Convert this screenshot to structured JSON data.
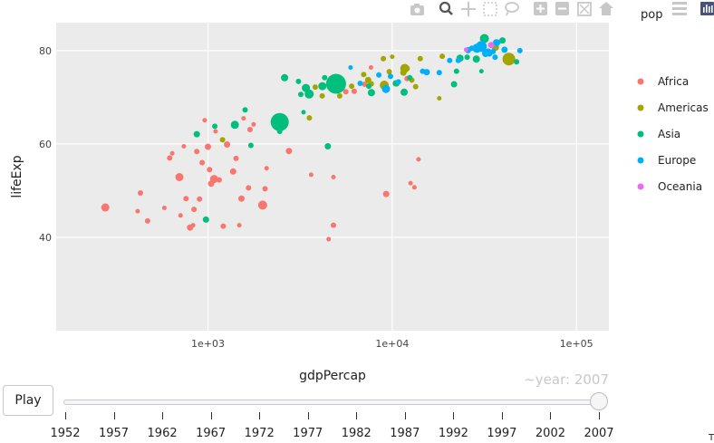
{
  "modebar": {
    "icons": [
      "camera-icon",
      "zoom-icon",
      "pan-icon",
      "box-select-icon",
      "lasso-icon",
      "zoom-in-icon",
      "zoom-out-icon",
      "autoscale-icon",
      "home-icon",
      "plotly-logo-icon"
    ]
  },
  "legend": {
    "title": "pop",
    "position": "right",
    "items": [
      {
        "label": "Africa",
        "color": "#f8766d"
      },
      {
        "label": "Americas",
        "color": "#a3a500"
      },
      {
        "label": "Asia",
        "color": "#00bf7d"
      },
      {
        "label": "Europe",
        "color": "#00b0f6"
      },
      {
        "label": "Oceania",
        "color": "#e76bf3"
      }
    ]
  },
  "slider": {
    "play_label": "Play",
    "current_label": "~year: 2007",
    "steps": [
      "1952",
      "1957",
      "1962",
      "1967",
      "1972",
      "1977",
      "1982",
      "1987",
      "1992",
      "1997",
      "2002",
      "2007"
    ],
    "active_index": 11
  },
  "corner_text": "T",
  "chart_data": {
    "type": "scatter",
    "title": "",
    "xlabel": "gdpPercap",
    "ylabel": "lifeExp",
    "x_scale": "log",
    "xlim": [
      150,
      150000
    ],
    "ylim": [
      20,
      86
    ],
    "x_ticks": [
      1000,
      10000,
      100000
    ],
    "x_tick_labels": [
      "1e+03",
      "1e+04",
      "1e+05"
    ],
    "y_ticks": [
      40,
      60,
      80
    ],
    "y_tick_labels": [
      "40",
      "60",
      "80"
    ],
    "grid": true,
    "background": "#ebebeb",
    "series": [
      {
        "name": "Africa",
        "color": "#f8766d",
        "points": [
          {
            "x": 277,
            "y": 46.4,
            "pop": 9
          },
          {
            "x": 415,
            "y": 45.6,
            "pop": 5
          },
          {
            "x": 430,
            "y": 49.5,
            "pop": 6
          },
          {
            "x": 470,
            "y": 43.5,
            "pop": 6
          },
          {
            "x": 580,
            "y": 46.3,
            "pop": 5
          },
          {
            "x": 620,
            "y": 57.0,
            "pop": 6
          },
          {
            "x": 640,
            "y": 58.0,
            "pop": 5
          },
          {
            "x": 700,
            "y": 52.9,
            "pop": 9
          },
          {
            "x": 710,
            "y": 44.7,
            "pop": 5
          },
          {
            "x": 740,
            "y": 59.5,
            "pop": 5
          },
          {
            "x": 760,
            "y": 48.3,
            "pop": 6
          },
          {
            "x": 800,
            "y": 42.1,
            "pop": 7
          },
          {
            "x": 830,
            "y": 42.6,
            "pop": 5
          },
          {
            "x": 840,
            "y": 46.0,
            "pop": 6
          },
          {
            "x": 870,
            "y": 58.4,
            "pop": 6
          },
          {
            "x": 900,
            "y": 48.2,
            "pop": 6
          },
          {
            "x": 930,
            "y": 56.0,
            "pop": 6
          },
          {
            "x": 960,
            "y": 65.1,
            "pop": 5
          },
          {
            "x": 1000,
            "y": 59.4,
            "pop": 7
          },
          {
            "x": 1020,
            "y": 54.5,
            "pop": 6
          },
          {
            "x": 1040,
            "y": 51.5,
            "pop": 7
          },
          {
            "x": 1080,
            "y": 52.5,
            "pop": 9
          },
          {
            "x": 1100,
            "y": 62.7,
            "pop": 5
          },
          {
            "x": 1150,
            "y": 52.3,
            "pop": 6
          },
          {
            "x": 1210,
            "y": 42.4,
            "pop": 6
          },
          {
            "x": 1270,
            "y": 59.9,
            "pop": 7
          },
          {
            "x": 1370,
            "y": 54.1,
            "pop": 7
          },
          {
            "x": 1420,
            "y": 56.9,
            "pop": 6
          },
          {
            "x": 1480,
            "y": 42.6,
            "pop": 5
          },
          {
            "x": 1520,
            "y": 48.3,
            "pop": 7
          },
          {
            "x": 1560,
            "y": 65.5,
            "pop": 5
          },
          {
            "x": 1660,
            "y": 50.6,
            "pop": 6
          },
          {
            "x": 1690,
            "y": 63.1,
            "pop": 6
          },
          {
            "x": 1770,
            "y": 64.2,
            "pop": 5
          },
          {
            "x": 1980,
            "y": 46.9,
            "pop": 10
          },
          {
            "x": 2040,
            "y": 50.4,
            "pop": 6
          },
          {
            "x": 2080,
            "y": 54.8,
            "pop": 5
          },
          {
            "x": 2750,
            "y": 58.5,
            "pop": 7
          },
          {
            "x": 3630,
            "y": 53.4,
            "pop": 5
          },
          {
            "x": 4520,
            "y": 39.6,
            "pop": 5
          },
          {
            "x": 4800,
            "y": 42.6,
            "pop": 6
          },
          {
            "x": 4800,
            "y": 52.9,
            "pop": 5
          },
          {
            "x": 5600,
            "y": 71.2,
            "pop": 6
          },
          {
            "x": 6220,
            "y": 71.3,
            "pop": 6
          },
          {
            "x": 7090,
            "y": 72.8,
            "pop": 6
          },
          {
            "x": 7670,
            "y": 76.4,
            "pop": 5
          },
          {
            "x": 9270,
            "y": 49.3,
            "pop": 7
          },
          {
            "x": 12050,
            "y": 74.0,
            "pop": 6
          },
          {
            "x": 12570,
            "y": 51.6,
            "pop": 5
          },
          {
            "x": 13200,
            "y": 50.7,
            "pop": 5
          },
          {
            "x": 13900,
            "y": 56.7,
            "pop": 5
          }
        ]
      },
      {
        "name": "Americas",
        "color": "#a3a500",
        "points": [
          {
            "x": 1200,
            "y": 60.9,
            "pop": 6
          },
          {
            "x": 3550,
            "y": 65.6,
            "pop": 6
          },
          {
            "x": 3820,
            "y": 72.2,
            "pop": 6
          },
          {
            "x": 4170,
            "y": 70.3,
            "pop": 6
          },
          {
            "x": 5190,
            "y": 70.3,
            "pop": 6
          },
          {
            "x": 6025,
            "y": 72.4,
            "pop": 6
          },
          {
            "x": 7000,
            "y": 74.9,
            "pop": 6
          },
          {
            "x": 7400,
            "y": 73.7,
            "pop": 7
          },
          {
            "x": 7700,
            "y": 72.9,
            "pop": 6
          },
          {
            "x": 8950,
            "y": 78.3,
            "pop": 6
          },
          {
            "x": 9060,
            "y": 72.6,
            "pop": 10
          },
          {
            "x": 9640,
            "y": 75.5,
            "pop": 6
          },
          {
            "x": 10600,
            "y": 72.9,
            "pop": 6
          },
          {
            "x": 11980,
            "y": 76.2,
            "pop": 7
          },
          {
            "x": 12780,
            "y": 73.7,
            "pop": 6
          },
          {
            "x": 13400,
            "y": 72.3,
            "pop": 6
          },
          {
            "x": 14200,
            "y": 78.3,
            "pop": 6
          },
          {
            "x": 18000,
            "y": 69.8,
            "pop": 5
          },
          {
            "x": 18700,
            "y": 78.8,
            "pop": 6
          },
          {
            "x": 36300,
            "y": 80.7,
            "pop": 8
          },
          {
            "x": 42950,
            "y": 78.2,
            "pop": 14
          },
          {
            "x": 10000,
            "y": 78.7,
            "pop": 5
          },
          {
            "x": 11500,
            "y": 75.3,
            "pop": 7
          },
          {
            "x": 11700,
            "y": 76.2,
            "pop": 10
          }
        ]
      },
      {
        "name": "Asia",
        "color": "#00bf7d",
        "points": [
          {
            "x": 870,
            "y": 62.1,
            "pop": 7
          },
          {
            "x": 975,
            "y": 43.8,
            "pop": 7
          },
          {
            "x": 1090,
            "y": 63.8,
            "pop": 6
          },
          {
            "x": 1400,
            "y": 64.1,
            "pop": 9
          },
          {
            "x": 1590,
            "y": 67.3,
            "pop": 6
          },
          {
            "x": 1710,
            "y": 59.7,
            "pop": 6
          },
          {
            "x": 2450,
            "y": 62.7,
            "pop": 6
          },
          {
            "x": 2450,
            "y": 64.7,
            "pop": 20
          },
          {
            "x": 2605,
            "y": 74.2,
            "pop": 8
          },
          {
            "x": 3100,
            "y": 73.4,
            "pop": 6
          },
          {
            "x": 3190,
            "y": 70.6,
            "pop": 6
          },
          {
            "x": 3300,
            "y": 66.8,
            "pop": 5
          },
          {
            "x": 3400,
            "y": 72.0,
            "pop": 9
          },
          {
            "x": 3540,
            "y": 70.7,
            "pop": 10
          },
          {
            "x": 4180,
            "y": 72.4,
            "pop": 9
          },
          {
            "x": 4300,
            "y": 74.2,
            "pop": 6
          },
          {
            "x": 4470,
            "y": 59.5,
            "pop": 7
          },
          {
            "x": 4960,
            "y": 72.9,
            "pop": 22
          },
          {
            "x": 7460,
            "y": 72.4,
            "pop": 6
          },
          {
            "x": 7710,
            "y": 71.0,
            "pop": 8
          },
          {
            "x": 10460,
            "y": 73.0,
            "pop": 7
          },
          {
            "x": 11610,
            "y": 71.1,
            "pop": 8
          },
          {
            "x": 12450,
            "y": 74.2,
            "pop": 6
          },
          {
            "x": 21650,
            "y": 72.8,
            "pop": 7
          },
          {
            "x": 22320,
            "y": 75.6,
            "pop": 6
          },
          {
            "x": 23350,
            "y": 78.4,
            "pop": 8
          },
          {
            "x": 25520,
            "y": 78.6,
            "pop": 6
          },
          {
            "x": 28600,
            "y": 78.2,
            "pop": 8
          },
          {
            "x": 31650,
            "y": 82.6,
            "pop": 10
          },
          {
            "x": 47300,
            "y": 77.6,
            "pop": 6
          },
          {
            "x": 39700,
            "y": 82.2,
            "pop": 7
          },
          {
            "x": 30500,
            "y": 75.6,
            "pop": 5
          }
        ]
      },
      {
        "name": "Europe",
        "color": "#00b0f6",
        "points": [
          {
            "x": 5940,
            "y": 76.4,
            "pop": 5
          },
          {
            "x": 6700,
            "y": 73.0,
            "pop": 6
          },
          {
            "x": 8460,
            "y": 74.8,
            "pop": 6
          },
          {
            "x": 9250,
            "y": 71.8,
            "pop": 9
          },
          {
            "x": 9790,
            "y": 74.5,
            "pop": 6
          },
          {
            "x": 10800,
            "y": 73.3,
            "pop": 6
          },
          {
            "x": 14620,
            "y": 75.6,
            "pop": 6
          },
          {
            "x": 15390,
            "y": 75.4,
            "pop": 7
          },
          {
            "x": 18010,
            "y": 75.3,
            "pop": 6
          },
          {
            "x": 20500,
            "y": 77.9,
            "pop": 6
          },
          {
            "x": 22830,
            "y": 77.9,
            "pop": 6
          },
          {
            "x": 25770,
            "y": 80.1,
            "pop": 7
          },
          {
            "x": 28820,
            "y": 80.5,
            "pop": 10
          },
          {
            "x": 30470,
            "y": 80.9,
            "pop": 12
          },
          {
            "x": 32170,
            "y": 79.4,
            "pop": 8
          },
          {
            "x": 33200,
            "y": 79.8,
            "pop": 7
          },
          {
            "x": 33690,
            "y": 79.4,
            "pop": 7
          },
          {
            "x": 36180,
            "y": 78.6,
            "pop": 6
          },
          {
            "x": 36800,
            "y": 81.7,
            "pop": 8
          },
          {
            "x": 37500,
            "y": 81.8,
            "pop": 6
          },
          {
            "x": 40680,
            "y": 80.2,
            "pop": 7
          },
          {
            "x": 49360,
            "y": 80.0,
            "pop": 6
          },
          {
            "x": 35280,
            "y": 79.8,
            "pop": 6
          },
          {
            "x": 27000,
            "y": 80.5,
            "pop": 6
          }
        ]
      },
      {
        "name": "Oceania",
        "color": "#e76bf3",
        "points": [
          {
            "x": 25190,
            "y": 80.2,
            "pop": 5
          },
          {
            "x": 34440,
            "y": 81.2,
            "pop": 7
          }
        ]
      }
    ]
  }
}
